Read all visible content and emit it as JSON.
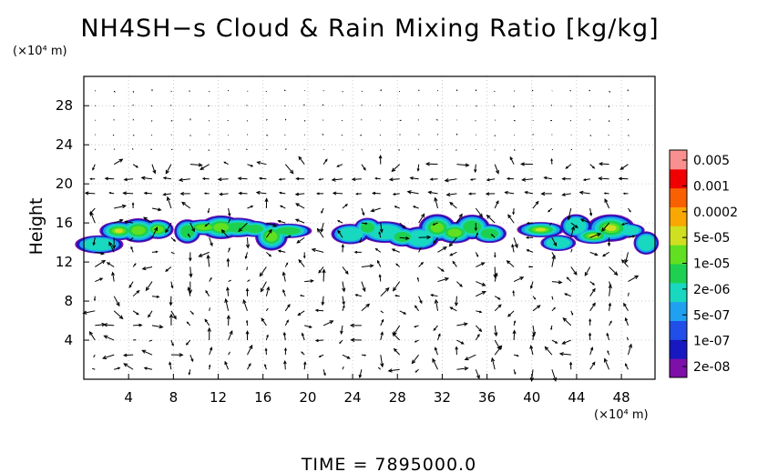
{
  "chart_data": {
    "type": "heatmap",
    "title": "NH4SH−s Cloud & Rain Mixing Ratio [kg/kg]",
    "ylabel": "Height",
    "x_unit": "(×10⁴ m)",
    "y_unit": "(×10⁴ m)",
    "xlim": [
      0,
      51
    ],
    "ylim": [
      0,
      31
    ],
    "x_ticks": [
      4,
      8,
      12,
      16,
      20,
      24,
      28,
      32,
      36,
      40,
      44,
      48
    ],
    "y_ticks": [
      4,
      8,
      12,
      16,
      20,
      24,
      28
    ],
    "grid": true,
    "colorbar": {
      "colors": [
        "#7e0fa8",
        "#1818c0",
        "#1f4fe8",
        "#1fa0f0",
        "#18d8c0",
        "#1ed050",
        "#60e020",
        "#d0e020",
        "#f8a800",
        "#f86000",
        "#f00000",
        "#f89090"
      ],
      "labels": [
        "2e-08",
        "1e-07",
        "5e-07",
        "2e-06",
        "1e-05",
        "5e-05",
        "0.0002",
        "0.001",
        "0.005"
      ]
    },
    "cloud_layer": {
      "height_range": [
        13,
        16.5
      ],
      "segments": [
        {
          "x_start": 0.5,
          "x_end": 7.5
        },
        {
          "x_start": 8.5,
          "x_end": 19.0
        },
        {
          "x_start": 23.0,
          "x_end": 37.0
        },
        {
          "x_start": 40.0,
          "x_end": 51.0
        }
      ]
    }
  },
  "footer": {
    "time_label": "TIME  =  7895000.0"
  }
}
